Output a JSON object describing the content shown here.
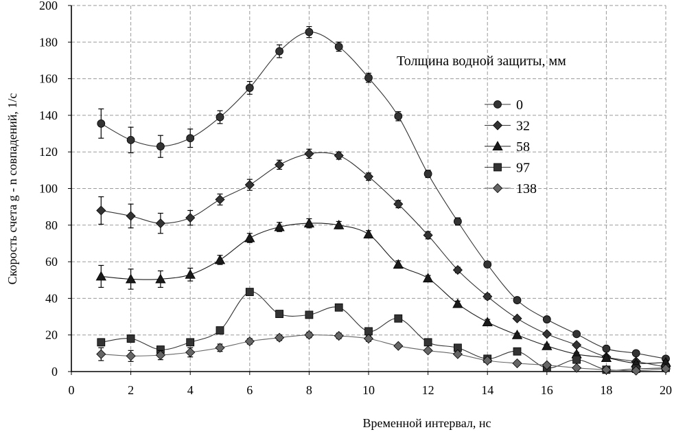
{
  "chart_data": {
    "type": "line",
    "xlabel": "Временной интервал, нс",
    "ylabel": "Скорость счета g - n совпадений, 1/с",
    "xlim": [
      0,
      20
    ],
    "ylim": [
      0,
      200
    ],
    "xticks": [
      "0",
      "2",
      "4",
      "6",
      "8",
      "10",
      "12",
      "14",
      "16",
      "18",
      "20"
    ],
    "yticks": [
      "0",
      "20",
      "40",
      "60",
      "80",
      "100",
      "120",
      "140",
      "160",
      "180",
      "200"
    ],
    "grid": true,
    "legend": {
      "title": "Толщина водной защиты, мм",
      "placement": "right"
    },
    "series": [
      {
        "name": "0",
        "marker": "circle",
        "color": "#333333",
        "x": [
          1,
          2,
          3,
          4,
          5,
          6,
          7,
          8,
          9,
          10,
          11,
          12,
          13,
          14,
          15,
          16,
          17,
          18,
          19,
          20
        ],
        "y": [
          135.5,
          126.5,
          123,
          127.5,
          139,
          155,
          175,
          185.5,
          177.5,
          160.5,
          139.5,
          108,
          82,
          58.5,
          39,
          28.5,
          20.5,
          12.5,
          10,
          7
        ],
        "err": [
          8,
          7,
          6,
          5,
          3.5,
          3.5,
          3.5,
          3,
          2.5,
          2.5,
          2.5,
          2,
          2,
          1.5,
          1.5,
          1.5,
          1,
          1,
          1,
          1
        ]
      },
      {
        "name": "32",
        "marker": "diamond",
        "color": "#333333",
        "x": [
          1,
          2,
          3,
          4,
          5,
          6,
          7,
          8,
          9,
          10,
          11,
          12,
          13,
          14,
          15,
          16,
          17,
          18,
          19,
          20
        ],
        "y": [
          88,
          85,
          81,
          84,
          94,
          102,
          113,
          119,
          118,
          106.5,
          91.5,
          74.5,
          55.5,
          41,
          29,
          20.5,
          14.5,
          8,
          5.5,
          2.5
        ],
        "err": [
          7.5,
          6.5,
          5.5,
          4,
          3,
          3,
          2.5,
          2.5,
          2,
          2,
          2,
          2,
          1.5,
          1.5,
          1,
          1,
          1,
          1,
          1,
          1
        ]
      },
      {
        "name": "58",
        "marker": "triangle",
        "color": "#1a1a1a",
        "x": [
          1,
          2,
          3,
          4,
          5,
          6,
          7,
          8,
          9,
          10,
          11,
          12,
          13,
          14,
          15,
          16,
          17,
          18,
          19,
          20
        ],
        "y": [
          52,
          50.5,
          50.5,
          53,
          61,
          73,
          79,
          81,
          80,
          75,
          58.5,
          51,
          37,
          27,
          20,
          14,
          9.5,
          7.5,
          4.5,
          5
        ],
        "err": [
          6,
          5.5,
          4.5,
          3.5,
          2.5,
          2.5,
          2.5,
          2.5,
          2,
          2,
          2,
          1.5,
          1.5,
          1.5,
          1,
          1,
          1,
          1,
          1,
          1
        ]
      },
      {
        "name": "97",
        "marker": "square",
        "color": "#333333",
        "x": [
          1,
          2,
          3,
          4,
          5,
          6,
          7,
          8,
          9,
          10,
          11,
          12,
          13,
          14,
          15,
          16,
          17,
          18,
          19,
          20
        ],
        "y": [
          16,
          18,
          12,
          16,
          22.5,
          43.5,
          31.5,
          31,
          35,
          22,
          29,
          16,
          13,
          7,
          11,
          2,
          6.5,
          1,
          1.5,
          2
        ],
        "err": [
          2,
          2,
          1.5,
          1.5,
          1.5,
          1.5,
          1.5,
          1.5,
          1.5,
          1.5,
          1.5,
          1,
          1,
          1,
          1,
          0.5,
          0.5,
          0.5,
          0.5,
          0.5
        ]
      },
      {
        "name": "138",
        "marker": "diamond",
        "color": "#666666",
        "x": [
          1,
          2,
          3,
          4,
          5,
          6,
          7,
          8,
          9,
          10,
          11,
          12,
          13,
          14,
          15,
          16,
          17,
          18,
          19,
          20
        ],
        "y": [
          9.5,
          8.5,
          9,
          10.5,
          13,
          16.5,
          18.5,
          20,
          19.5,
          18,
          14,
          11.5,
          9.5,
          6,
          4.5,
          3.5,
          2,
          1,
          0.5,
          1.5
        ],
        "err": [
          3.5,
          3,
          2.5,
          2.5,
          2,
          1.5,
          1.5,
          1.5,
          1.5,
          1.5,
          1,
          1,
          1,
          1,
          1,
          0.5,
          0.5,
          0.5,
          0.5,
          0.5
        ]
      }
    ]
  }
}
